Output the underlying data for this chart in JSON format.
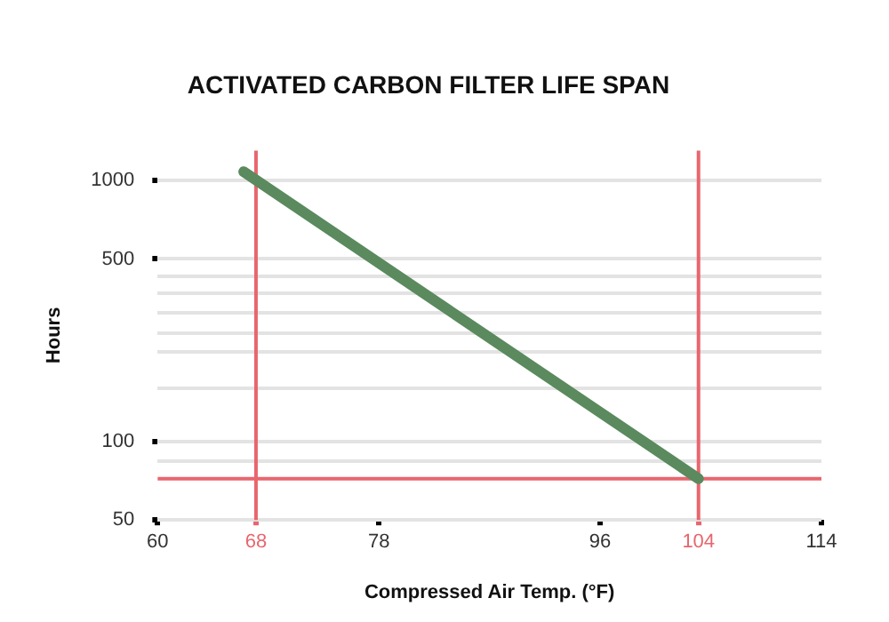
{
  "chart_data": {
    "type": "line",
    "title": "ACTIVATED CARBON FILTER LIFE SPAN",
    "xlabel": "Compressed Air Temp. (°F)",
    "ylabel": "Hours",
    "x": [
      67,
      104
    ],
    "series": [
      {
        "color": "#5a8a5e",
        "values": [
          1080,
          72
        ]
      }
    ],
    "log": "y",
    "xlim": [
      60,
      114
    ],
    "xticks": [
      60,
      68,
      78,
      96,
      104,
      114
    ],
    "ylim": [
      50,
      1300
    ],
    "yticks": [
      50,
      {
        "value": 84,
        "label": null
      },
      100,
      {
        "value": 160,
        "label": null
      },
      {
        "value": 220,
        "label": null
      },
      {
        "value": 260,
        "label": null
      },
      {
        "value": 310,
        "label": null
      },
      {
        "value": 370,
        "label": null
      },
      {
        "value": 430,
        "label": null
      },
      500,
      1000
    ],
    "ref_lines": [
      {
        "axis": "x",
        "value": 68,
        "color": "#e8666e"
      },
      {
        "axis": "x",
        "value": 104,
        "color": "#e8666e"
      },
      {
        "axis": "y",
        "value": 72,
        "color": "#e8666e"
      }
    ],
    "grid": "y",
    "legend": false,
    "marker": "none",
    "line_style": "solid"
  }
}
